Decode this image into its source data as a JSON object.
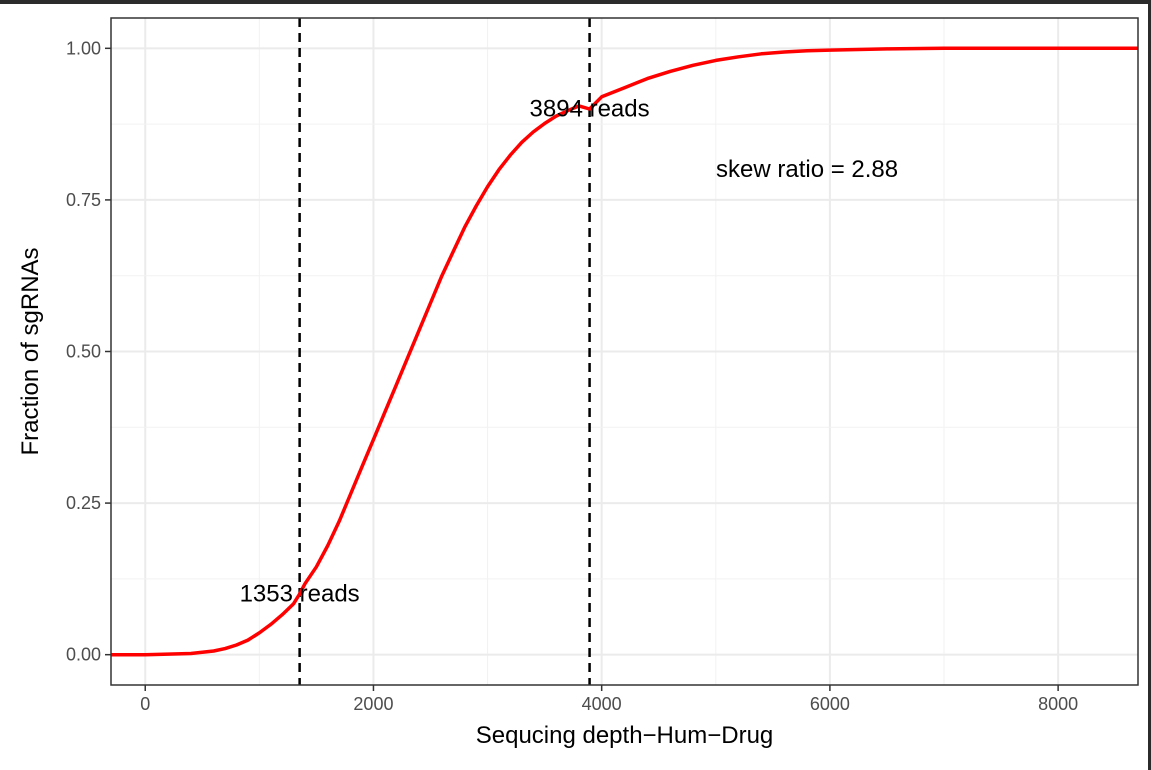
{
  "chart_data": {
    "type": "line",
    "xlabel": "Sequcing depth−Hum−Drug",
    "ylabel": "Fraction of sgRNAs",
    "xlim": [
      -300,
      8700
    ],
    "ylim": [
      -0.05,
      1.05
    ],
    "x_ticks": [
      0,
      2000,
      4000,
      6000,
      8000
    ],
    "x_tick_labels": [
      "0",
      "2000",
      "4000",
      "6000",
      "8000"
    ],
    "y_ticks": [
      0.0,
      0.25,
      0.5,
      0.75,
      1.0
    ],
    "y_tick_labels": [
      "0.00",
      "0.25",
      "0.50",
      "0.75",
      "1.00"
    ],
    "grid": true,
    "series": [
      {
        "color": "#ff0000",
        "x": [
          -300,
          0,
          200,
          400,
          600,
          700,
          800,
          900,
          1000,
          1100,
          1200,
          1300,
          1353,
          1400,
          1500,
          1600,
          1700,
          1800,
          1900,
          2000,
          2100,
          2200,
          2300,
          2400,
          2500,
          2600,
          2700,
          2800,
          2900,
          3000,
          3100,
          3200,
          3300,
          3400,
          3500,
          3600,
          3700,
          3800,
          3894,
          4000,
          4200,
          4400,
          4600,
          4800,
          5000,
          5200,
          5400,
          5600,
          5800,
          6000,
          6500,
          7000,
          7500,
          8000,
          8700
        ],
        "y": [
          0.0,
          0.0,
          0.001,
          0.002,
          0.006,
          0.01,
          0.016,
          0.024,
          0.036,
          0.05,
          0.066,
          0.084,
          0.1,
          0.117,
          0.145,
          0.18,
          0.22,
          0.265,
          0.31,
          0.355,
          0.4,
          0.445,
          0.49,
          0.535,
          0.58,
          0.625,
          0.665,
          0.705,
          0.74,
          0.772,
          0.8,
          0.824,
          0.845,
          0.862,
          0.876,
          0.888,
          0.897,
          0.905,
          0.9,
          0.92,
          0.935,
          0.95,
          0.962,
          0.972,
          0.98,
          0.986,
          0.991,
          0.994,
          0.996,
          0.997,
          0.999,
          1.0,
          1.0,
          1.0,
          1.0
        ]
      }
    ],
    "vlines": [
      {
        "x": 1353,
        "style": "dashed",
        "color": "#000000"
      },
      {
        "x": 3894,
        "style": "dashed",
        "color": "#000000"
      }
    ],
    "annotations": [
      {
        "text": "1353 reads",
        "x": 1353,
        "y": 0.1
      },
      {
        "text": "3894 reads",
        "x": 3894,
        "y": 0.9
      },
      {
        "text": "skew ratio = 2.88",
        "x": 5800,
        "y": 0.8
      }
    ]
  }
}
